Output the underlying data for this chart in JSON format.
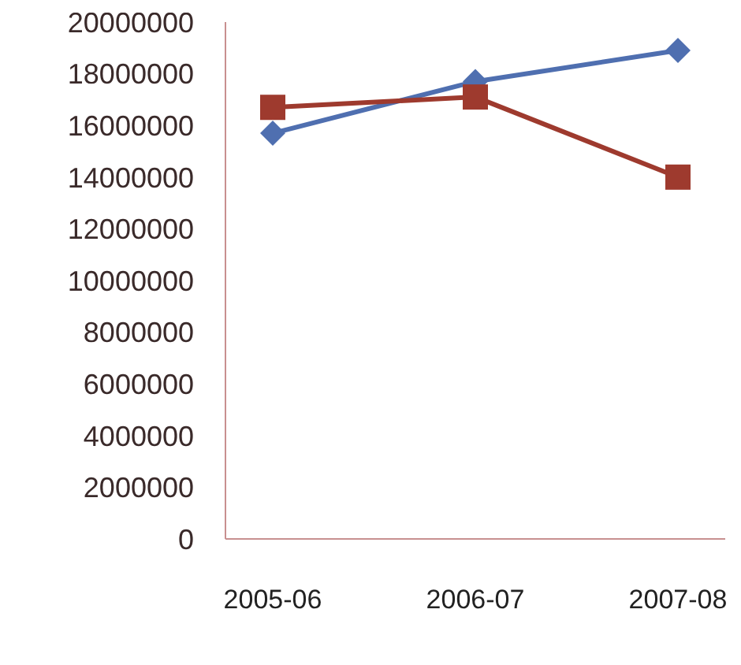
{
  "chart_data": {
    "type": "line",
    "categories": [
      "2005-06",
      "2006-07",
      "2007-08"
    ],
    "series": [
      {
        "color": "#4f6fb0",
        "marker": "diamond",
        "values": [
          15700000,
          17700000,
          18900000
        ]
      },
      {
        "color": "#9e3a2e",
        "marker": "square",
        "values": [
          16700000,
          17100000,
          14000000
        ]
      }
    ],
    "ylim": [
      0,
      20000000
    ],
    "yticks": [
      0,
      2000000,
      4000000,
      6000000,
      8000000,
      10000000,
      12000000,
      14000000,
      16000000,
      18000000,
      20000000
    ],
    "grid": false,
    "legend": false
  }
}
